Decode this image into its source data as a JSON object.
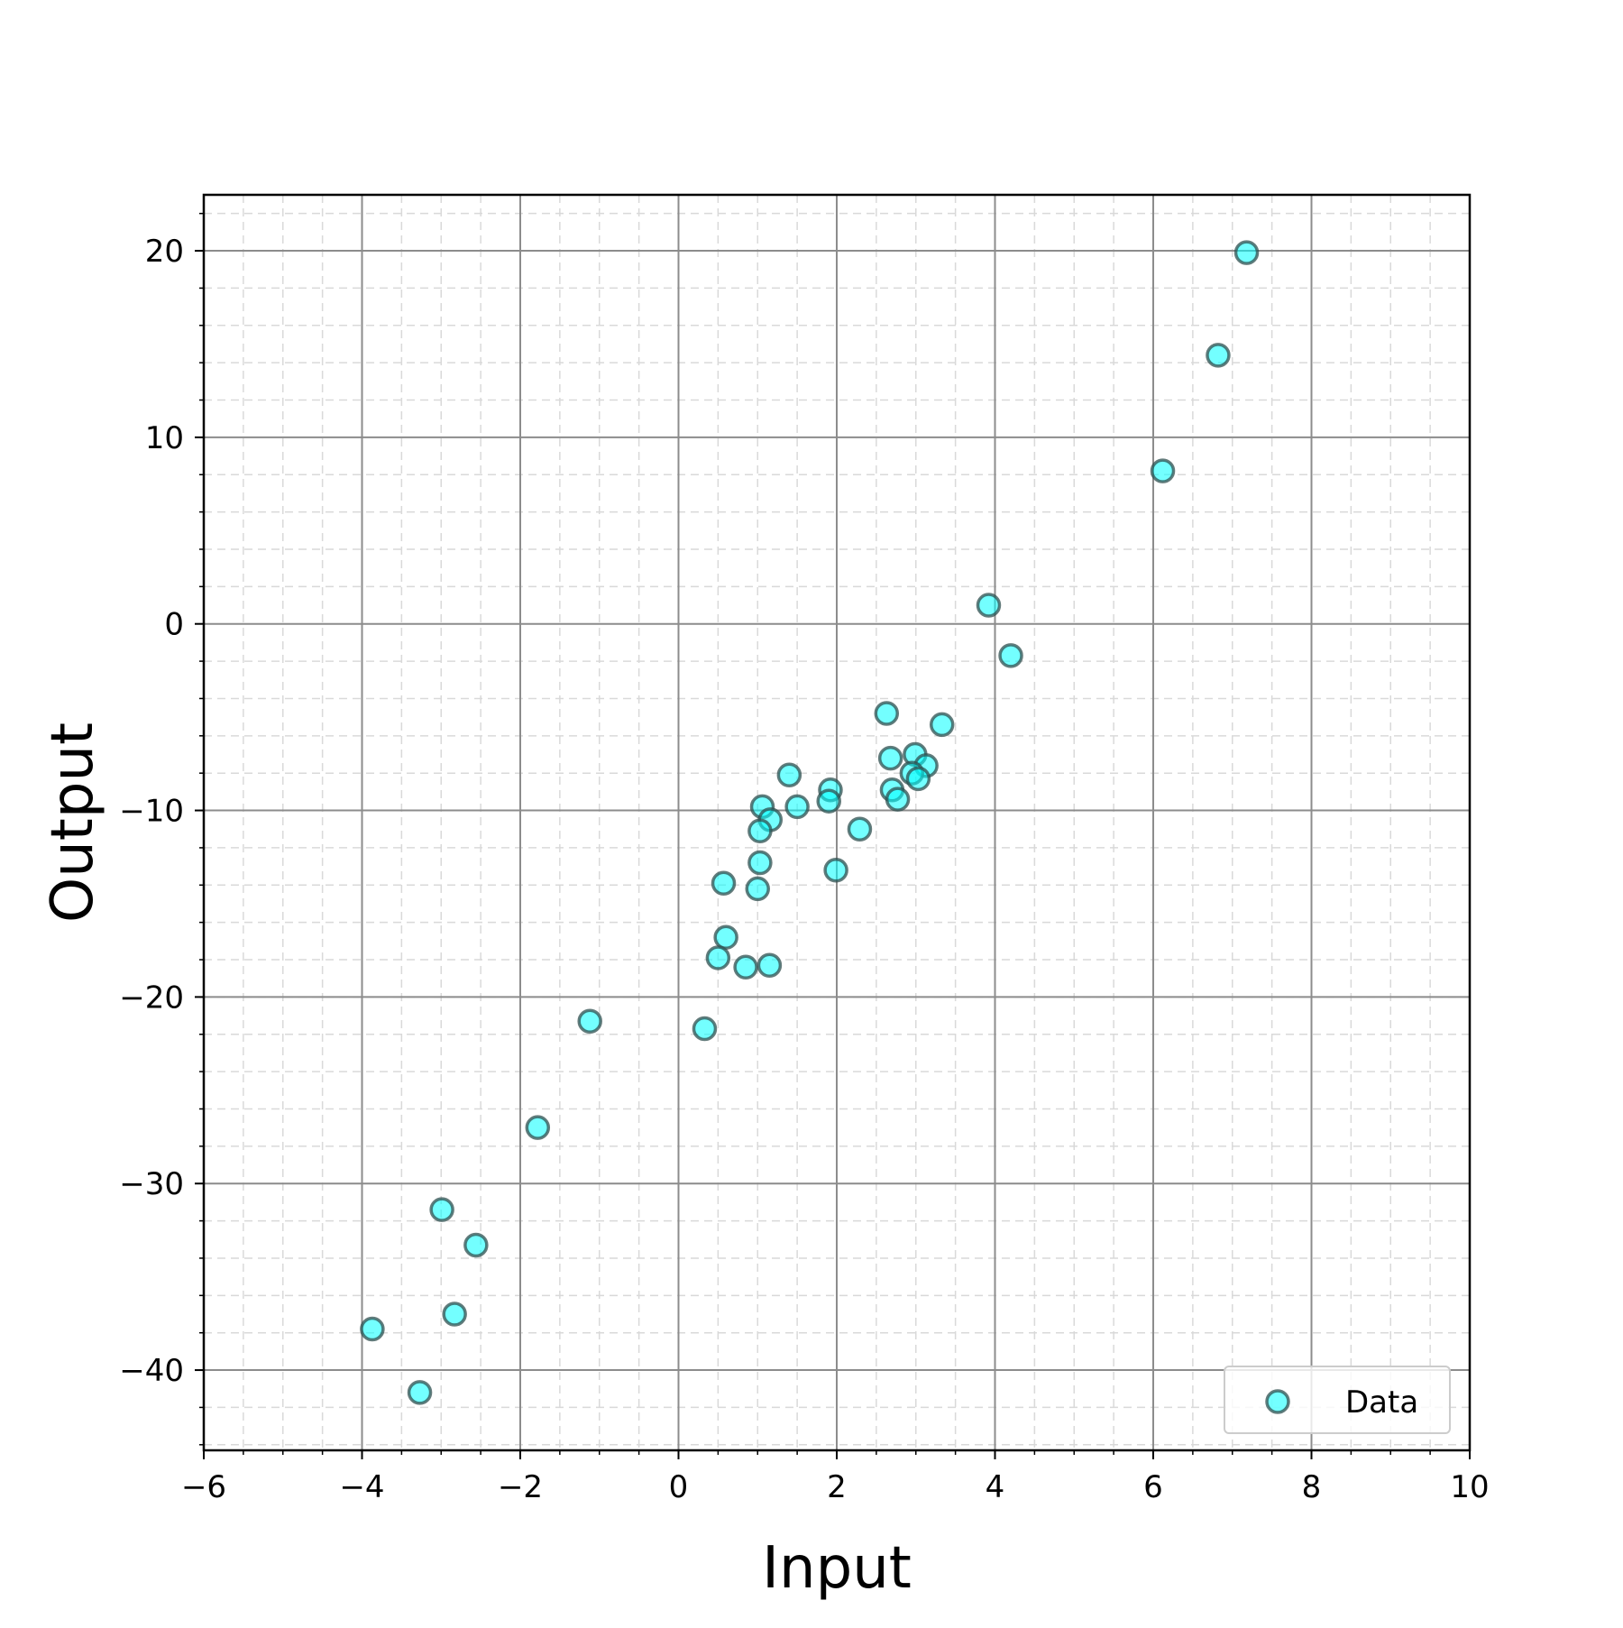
{
  "chart_data": {
    "type": "scatter",
    "title": "",
    "xlabel": "Input",
    "ylabel": "Output",
    "xlim": [
      -6,
      10
    ],
    "ylim": [
      -44.3,
      23
    ],
    "x_ticks": [
      -6,
      -4,
      -2,
      0,
      2,
      4,
      6,
      8,
      10
    ],
    "y_ticks": [
      -40,
      -30,
      -20,
      -10,
      0,
      10,
      20
    ],
    "x_tick_labels": [
      "−6",
      "−4",
      "−2",
      "0",
      "2",
      "4",
      "6",
      "8",
      "10"
    ],
    "y_tick_labels": [
      "−40",
      "−30",
      "−20",
      "−10",
      "0",
      "10",
      "20"
    ],
    "grid": true,
    "minor_grid": true,
    "legend": {
      "location": "lower right",
      "entries": [
        "Data"
      ]
    },
    "series": [
      {
        "name": "Data",
        "color": "#00ffff",
        "edge_color": "#2f4f4f",
        "points": [
          {
            "x": 7.18,
            "y": 19.9
          },
          {
            "x": 6.82,
            "y": 14.4
          },
          {
            "x": 6.12,
            "y": 8.2
          },
          {
            "x": 3.92,
            "y": 1.0
          },
          {
            "x": 4.2,
            "y": -1.7
          },
          {
            "x": 2.63,
            "y": -4.8
          },
          {
            "x": 3.33,
            "y": -5.4
          },
          {
            "x": 2.68,
            "y": -7.2
          },
          {
            "x": 2.99,
            "y": -7.0
          },
          {
            "x": 3.13,
            "y": -7.6
          },
          {
            "x": 2.95,
            "y": -8.0
          },
          {
            "x": 3.03,
            "y": -8.3
          },
          {
            "x": 2.7,
            "y": -8.9
          },
          {
            "x": 2.77,
            "y": -9.4
          },
          {
            "x": 1.4,
            "y": -8.1
          },
          {
            "x": 1.92,
            "y": -8.9
          },
          {
            "x": 1.9,
            "y": -9.5
          },
          {
            "x": 1.5,
            "y": -9.8
          },
          {
            "x": 1.06,
            "y": -9.8
          },
          {
            "x": 1.16,
            "y": -10.5
          },
          {
            "x": 1.03,
            "y": -11.1
          },
          {
            "x": 2.29,
            "y": -11.0
          },
          {
            "x": 1.03,
            "y": -12.8
          },
          {
            "x": 1.99,
            "y": -13.2
          },
          {
            "x": 0.57,
            "y": -13.9
          },
          {
            "x": 1.0,
            "y": -14.2
          },
          {
            "x": 0.6,
            "y": -16.8
          },
          {
            "x": 0.5,
            "y": -17.9
          },
          {
            "x": 0.85,
            "y": -18.4
          },
          {
            "x": 1.15,
            "y": -18.3
          },
          {
            "x": -1.12,
            "y": -21.3
          },
          {
            "x": 0.33,
            "y": -21.7
          },
          {
            "x": -1.78,
            "y": -27.0
          },
          {
            "x": -2.99,
            "y": -31.4
          },
          {
            "x": -2.56,
            "y": -33.3
          },
          {
            "x": -2.83,
            "y": -37.0
          },
          {
            "x": -3.87,
            "y": -37.8
          },
          {
            "x": -3.27,
            "y": -41.2
          }
        ]
      }
    ]
  }
}
